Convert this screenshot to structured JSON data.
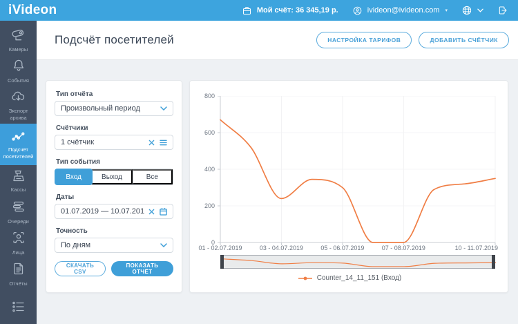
{
  "topbar": {
    "logo": "iVideon",
    "balance_label": "Мой счёт: 36 345,19 р.",
    "account_email": "ivideon@ivideon.com",
    "icons": [
      "wallet-icon",
      "user-icon",
      "globe-icon",
      "chevron-down-icon",
      "logout-icon"
    ]
  },
  "sidebar": {
    "items": [
      {
        "label": "Камеры",
        "icon": "camera-icon",
        "active": false
      },
      {
        "label": "События",
        "icon": "bell-icon",
        "active": false
      },
      {
        "label": "Экспорт архива",
        "icon": "cloud-download-icon",
        "active": false
      },
      {
        "label": "Подсчёт посетителей",
        "icon": "line-chart-icon",
        "active": true
      },
      {
        "label": "Кассы",
        "icon": "cash-register-icon",
        "active": false
      },
      {
        "label": "Очереди",
        "icon": "queue-icon",
        "active": false
      },
      {
        "label": "Лица",
        "icon": "face-icon",
        "active": false
      },
      {
        "label": "Отчёты",
        "icon": "report-icon",
        "active": false
      },
      {
        "label": "",
        "icon": "list-icon",
        "active": false
      }
    ]
  },
  "header": {
    "title": "Подсчёт посетителей",
    "tariff_button": "НАСТРОЙКА ТАРИФОВ",
    "add_counter_button": "ДОБАВИТЬ СЧЁТЧИК"
  },
  "form": {
    "report_type": {
      "label": "Тип отчёта",
      "value": "Произвольный период"
    },
    "counters": {
      "label": "Счётчики",
      "value": "1 счётчик"
    },
    "event_type": {
      "label": "Тип события",
      "options": [
        "Вход",
        "Выход",
        "Все"
      ],
      "selected": "Вход"
    },
    "dates": {
      "label": "Даты",
      "value": "01.07.2019 — 10.07.2019"
    },
    "precision": {
      "label": "Точность",
      "value": "По дням"
    },
    "csv_button": "СКАЧАТЬ CSV",
    "report_button": "ПОКАЗАТЬ ОТЧЁТ"
  },
  "chart_data": {
    "type": "line",
    "x": [
      "01.07.2019",
      "02.07.2019",
      "03.07.2019",
      "04.07.2019",
      "05.07.2019",
      "06.07.2019",
      "07.07.2019",
      "08.07.2019",
      "09.07.2019",
      "10.07.2019"
    ],
    "values": [
      670,
      520,
      240,
      345,
      300,
      0,
      0,
      290,
      320,
      350
    ],
    "series_name": "Counter_14_11_151 (Вход)",
    "x_tick_labels": [
      "01 - 02.07.2019",
      "03 - 04.07.2019",
      "05 - 06.07.2019",
      "07 - 08.07.2019",
      "10 - 11.07.2019"
    ],
    "x_tick_positions": [
      0,
      2,
      4,
      6,
      9
    ],
    "y_ticks": [
      800,
      600,
      400,
      200,
      0
    ],
    "ylim": [
      0,
      800
    ],
    "grid": true,
    "legend_position": "bottom",
    "line_color": "#f07e45",
    "has_range_slider": true
  },
  "colors": {
    "accent": "#3f9fd8",
    "topbar": "#3da4de",
    "sidebar": "#414e61",
    "sidebar_active": "#3d9edb",
    "chart_line": "#f07e45",
    "content_bg": "#eef1f4"
  }
}
